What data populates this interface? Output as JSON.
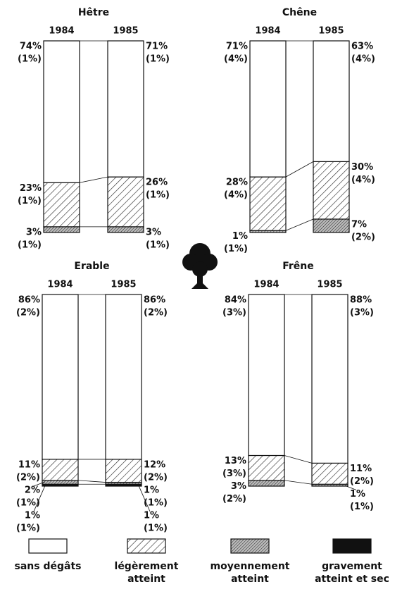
{
  "legend": [
    {
      "name": "sans dégâts",
      "pattern": "none"
    },
    {
      "name": "légèrement atteint",
      "pattern": "hatch"
    },
    {
      "name": "moyennement atteint",
      "pattern": "dense"
    },
    {
      "name": "gravement atteint et sec",
      "pattern": "solid"
    }
  ],
  "chart_data": [
    {
      "type": "bar",
      "stacked": true,
      "title": "Hêtre",
      "categories": [
        "1984",
        "1985"
      ],
      "ylim": [
        0,
        100
      ],
      "series": [
        {
          "pattern": "none",
          "values": [
            74,
            71
          ],
          "value_labels": [
            "74%",
            "71%"
          ],
          "errors": [
            1,
            1
          ],
          "error_labels": [
            "(1%)",
            "(1%)"
          ]
        },
        {
          "pattern": "hatch",
          "values": [
            23,
            26
          ],
          "value_labels": [
            "23%",
            "26%"
          ],
          "errors": [
            1,
            1
          ],
          "error_labels": [
            "(1%)",
            "(1%)"
          ]
        },
        {
          "pattern": "dense",
          "values": [
            3,
            3
          ],
          "value_labels": [
            "3%",
            "3%"
          ],
          "errors": [
            1,
            1
          ],
          "error_labels": [
            "(1%)",
            "(1%)"
          ]
        }
      ]
    },
    {
      "type": "bar",
      "stacked": true,
      "title": "Chêne",
      "categories": [
        "1984",
        "1985"
      ],
      "ylim": [
        0,
        100
      ],
      "series": [
        {
          "pattern": "none",
          "values": [
            71,
            63
          ],
          "value_labels": [
            "71%",
            "63%"
          ],
          "errors": [
            4,
            4
          ],
          "error_labels": [
            "(4%)",
            "(4%)"
          ]
        },
        {
          "pattern": "hatch",
          "values": [
            28,
            30
          ],
          "value_labels": [
            "28%",
            "30%"
          ],
          "errors": [
            4,
            4
          ],
          "error_labels": [
            "(4%)",
            "(4%)"
          ]
        },
        {
          "pattern": "dense",
          "values": [
            1,
            7
          ],
          "value_labels": [
            "1%",
            "7%"
          ],
          "errors": [
            1,
            2
          ],
          "error_labels": [
            "(1%)",
            "(2%)"
          ]
        }
      ]
    },
    {
      "type": "bar",
      "stacked": true,
      "title": "Erable",
      "categories": [
        "1984",
        "1985"
      ],
      "ylim": [
        0,
        100
      ],
      "series": [
        {
          "pattern": "none",
          "values": [
            86,
            86
          ],
          "value_labels": [
            "86%",
            "86%"
          ],
          "errors": [
            2,
            2
          ],
          "error_labels": [
            "(2%)",
            "(2%)"
          ]
        },
        {
          "pattern": "hatch",
          "values": [
            11,
            12
          ],
          "value_labels": [
            "11%",
            "12%"
          ],
          "errors": [
            2,
            2
          ],
          "error_labels": [
            "(2%)",
            "(2%)"
          ]
        },
        {
          "pattern": "dense",
          "values": [
            2,
            1
          ],
          "value_labels": [
            "2%",
            "1%"
          ],
          "errors": [
            1,
            1
          ],
          "error_labels": [
            "(1%)",
            "(1%)"
          ]
        },
        {
          "pattern": "solid",
          "values": [
            1,
            1
          ],
          "value_labels": [
            "1%",
            "1%"
          ],
          "errors": [
            1,
            1
          ],
          "error_labels": [
            "(1%)",
            "(1%)"
          ]
        }
      ]
    },
    {
      "type": "bar",
      "stacked": true,
      "title": "Frêne",
      "categories": [
        "1984",
        "1985"
      ],
      "ylim": [
        0,
        100
      ],
      "series": [
        {
          "pattern": "none",
          "values": [
            84,
            88
          ],
          "value_labels": [
            "84%",
            "88%"
          ],
          "errors": [
            3,
            3
          ],
          "error_labels": [
            "(3%)",
            "(3%)"
          ]
        },
        {
          "pattern": "hatch",
          "values": [
            13,
            11
          ],
          "value_labels": [
            "13%",
            "11%"
          ],
          "errors": [
            3,
            2
          ],
          "error_labels": [
            "(3%)",
            "(2%)"
          ]
        },
        {
          "pattern": "dense",
          "values": [
            3,
            1
          ],
          "value_labels": [
            "3%",
            "1%"
          ],
          "errors": [
            2,
            1
          ],
          "error_labels": [
            "(2%)",
            "(1%)"
          ]
        }
      ]
    }
  ]
}
